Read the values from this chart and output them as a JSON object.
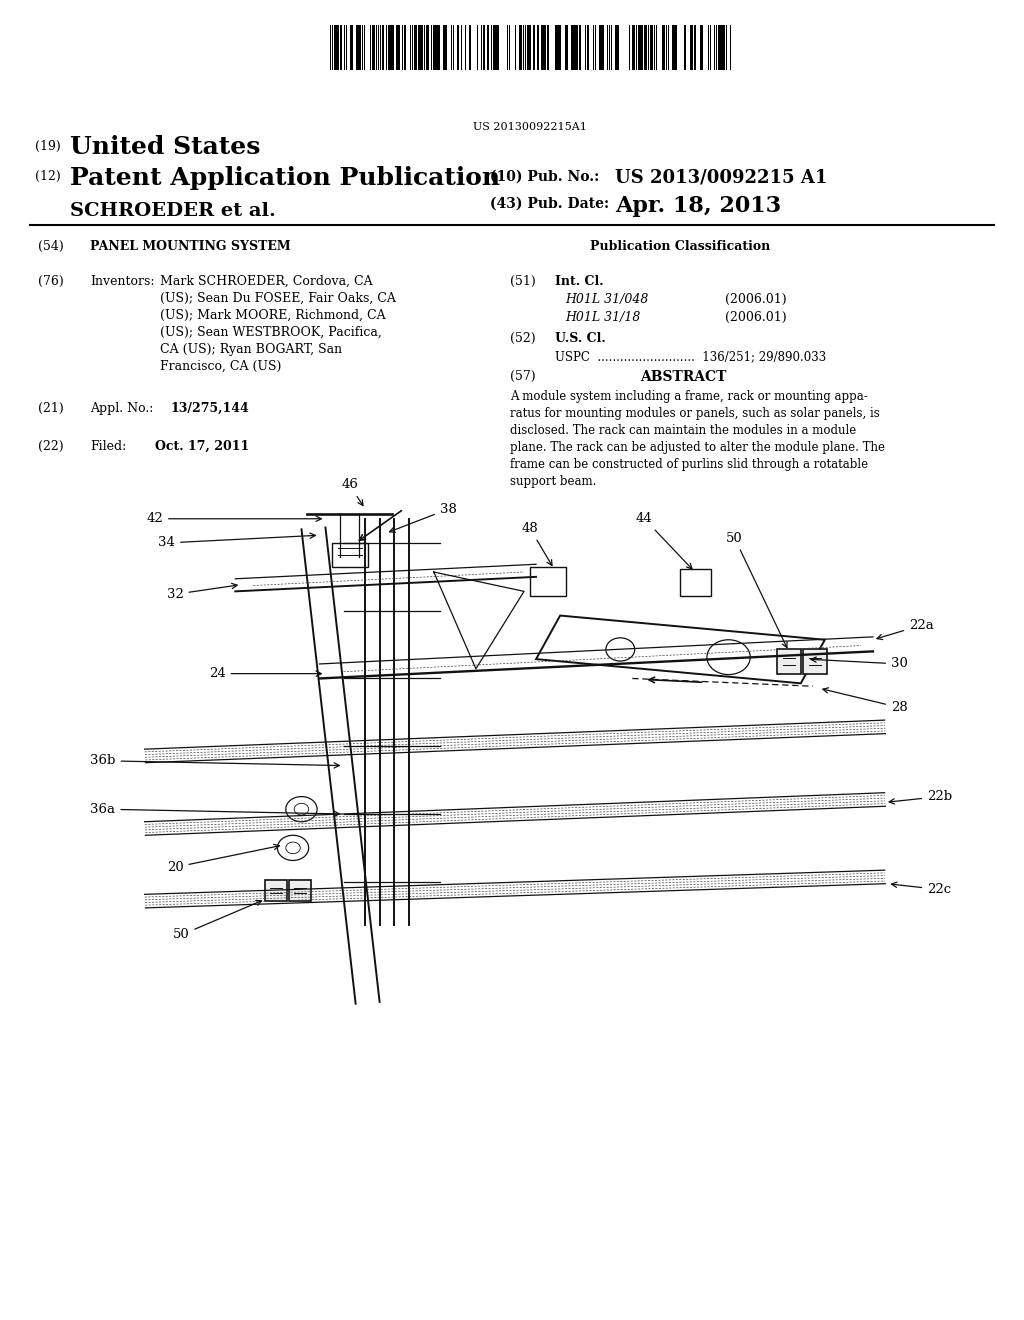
{
  "background_color": "#ffffff",
  "barcode_text": "US 20130092215A1",
  "title_19": "United States",
  "title_12": "Patent Application Publication",
  "applicant": "SCHROEDER et al.",
  "pub_no_label": "(10) Pub. No.:",
  "pub_no": "US 2013/0092215 A1",
  "pub_date_label": "(43) Pub. Date:",
  "pub_date": "Apr. 18, 2013",
  "s54_title": "PANEL MOUNTING SYSTEM",
  "pub_class": "Publication Classification",
  "inventors_label": "Inventors:",
  "inventors": "Mark SCHROEDER, Cordova, CA\n(US); Sean Du FOSEE, Fair Oaks, CA\n(US); Mark MOORE, Richmond, CA\n(US); Sean WESTBROOK, Pacifica,\nCA (US); Ryan BOGART, San\nFrancisco, CA (US)",
  "int_cl_1": "H01L 31/048",
  "int_cl_2": "H01L 31/18",
  "int_cl_date": "(2006.01)",
  "uspc_value": "136/251; 29/890.033",
  "abstract": "A module system including a frame, rack or mounting appa-\nratus for mounting modules or panels, such as solar panels, is\ndisclosed. The rack can maintain the modules in a module\nplane. The rack can be adjusted to alter the module plane. The\nframe can be constructed of purlins slid through a rotatable\nsupport beam.",
  "appl_no": "13/275,144",
  "filed_date": "Oct. 17, 2011"
}
